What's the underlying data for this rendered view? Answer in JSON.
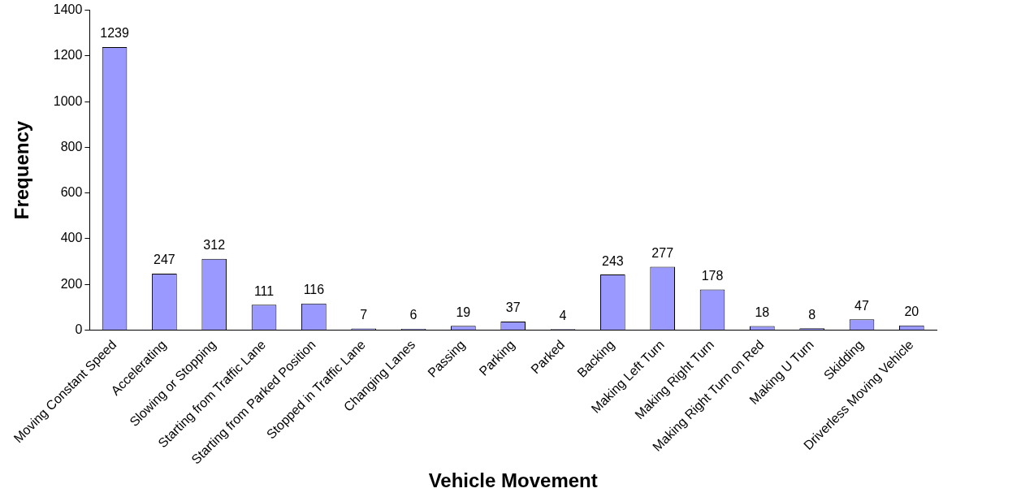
{
  "chart_data": {
    "type": "bar",
    "xlabel": "Vehicle Movement",
    "ylabel": "Frequency",
    "categories": [
      "Moving Constant Speed",
      "Accelerating",
      "Slowing or Stopping",
      "Starting from Traffic Lane",
      "Starting from Parked Position",
      "Stopped in Traffic Lane",
      "Changing Lanes",
      "Passing",
      "Parking",
      "Parked",
      "Backing",
      "Making Left Turn",
      "Making Right Turn",
      "Making Right Turn on Red",
      "Making U Turn",
      "Skidding",
      "Driverless Moving Vehicle"
    ],
    "values": [
      1239,
      247,
      312,
      111,
      116,
      7,
      6,
      19,
      37,
      4,
      243,
      277,
      178,
      18,
      8,
      47,
      20
    ],
    "color": "#9999ff",
    "ylim": [
      0,
      1400
    ],
    "yticks": [
      0,
      200,
      400,
      600,
      800,
      1000,
      1200,
      1400
    ],
    "data_labels": true,
    "grid": false,
    "legend": false
  }
}
